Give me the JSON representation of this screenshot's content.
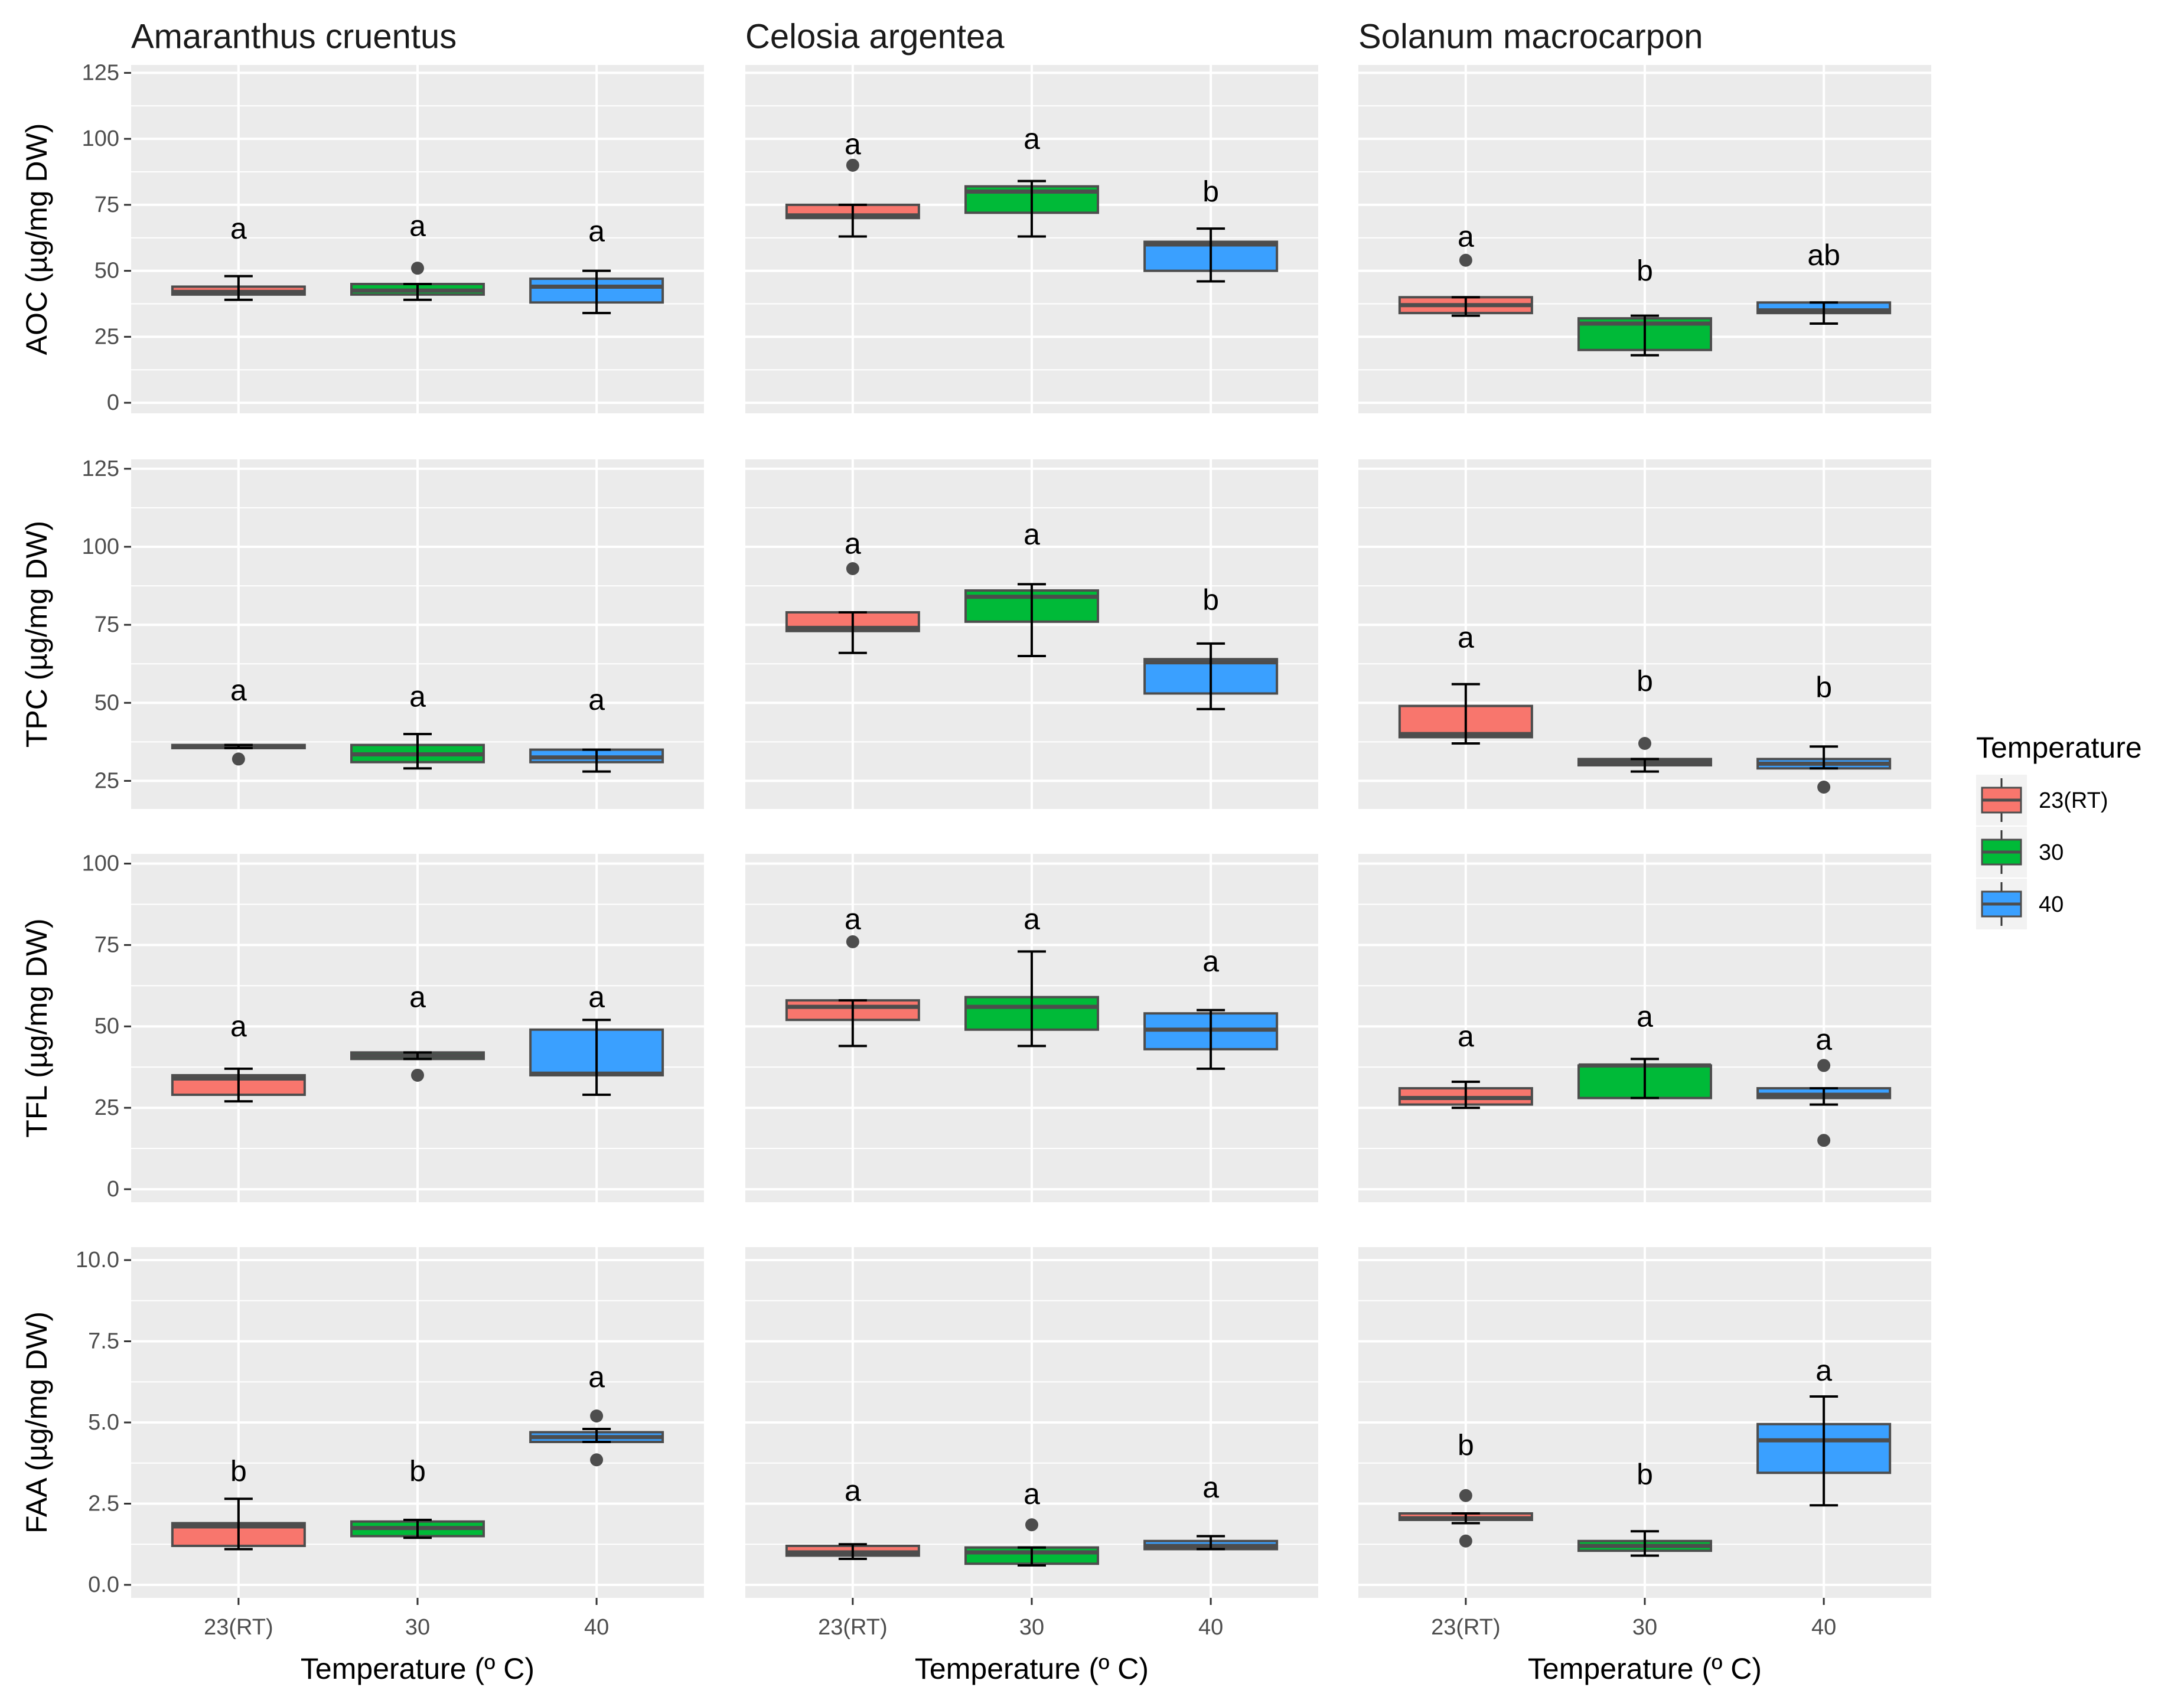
{
  "chart_data": {
    "type": "boxplot",
    "layout": "facet-grid",
    "xlabel": "Temperature (º C)",
    "legend": {
      "title": "Temperature",
      "position": "right",
      "entries": [
        {
          "label": "23(RT)",
          "color": "#F8766D"
        },
        {
          "label": "30",
          "color": "#00BA38"
        },
        {
          "label": "40",
          "color": "#3AA0FF"
        }
      ]
    },
    "categories": [
      "23(RT)",
      "30",
      "40"
    ],
    "columns": [
      "Amaranthus cruentus",
      "Celosia argentea",
      "Solanum macrocarpon"
    ],
    "rows": [
      {
        "ylabel": "AOC (µg/mg DW)",
        "ylim": [
          -4,
          128
        ],
        "ticks": [
          0,
          25,
          50,
          75,
          100,
          125
        ],
        "tick_labels": [
          "0",
          "25",
          "50",
          "75",
          "100",
          "125"
        ]
      },
      {
        "ylabel": "TPC (µg/mg DW)",
        "ylim": [
          16,
          128
        ],
        "ticks": [
          25,
          50,
          75,
          100,
          125
        ],
        "tick_labels": [
          "25",
          "50",
          "75",
          "100",
          "125"
        ]
      },
      {
        "ylabel": "TFL (µg/mg DW)",
        "ylim": [
          -4,
          103
        ],
        "ticks": [
          0,
          25,
          50,
          75,
          100
        ],
        "tick_labels": [
          "0",
          "25",
          "50",
          "75",
          "100"
        ]
      },
      {
        "ylabel": "FAA (µg/mg DW)",
        "ylim": [
          -0.4,
          10.4
        ],
        "ticks": [
          0,
          2.5,
          5,
          7.5,
          10
        ],
        "tick_labels": [
          "0.0",
          "2.5",
          "5.0",
          "7.5",
          "10.0"
        ]
      }
    ],
    "panels": [
      [
        {
          "boxes": [
            {
              "q1": 41,
              "median": 42,
              "q3": 44,
              "wlo": 39,
              "whi": 48,
              "outliers": [],
              "letter": "a",
              "letter_y": 66
            },
            {
              "q1": 41,
              "median": 42.5,
              "q3": 45,
              "wlo": 39,
              "whi": 45,
              "outliers": [
                51
              ],
              "letter": "a",
              "letter_y": 67
            },
            {
              "q1": 38,
              "median": 44,
              "q3": 47,
              "wlo": 34,
              "whi": 50,
              "outliers": [],
              "letter": "a",
              "letter_y": 65
            }
          ]
        },
        {
          "boxes": [
            {
              "q1": 70,
              "median": 71,
              "q3": 75,
              "wlo": 63,
              "whi": 75,
              "outliers": [
                90
              ],
              "letter": "a",
              "letter_y": 98
            },
            {
              "q1": 72,
              "median": 80,
              "q3": 82,
              "wlo": 63,
              "whi": 84,
              "outliers": [],
              "letter": "a",
              "letter_y": 100
            },
            {
              "q1": 50,
              "median": 60,
              "q3": 61,
              "wlo": 46,
              "whi": 66,
              "outliers": [],
              "letter": "b",
              "letter_y": 80
            }
          ]
        },
        {
          "boxes": [
            {
              "q1": 34,
              "median": 37,
              "q3": 40,
              "wlo": 33,
              "whi": 40,
              "outliers": [
                54
              ],
              "letter": "a",
              "letter_y": 63
            },
            {
              "q1": 20,
              "median": 30,
              "q3": 32,
              "wlo": 18,
              "whi": 33,
              "outliers": [],
              "letter": "b",
              "letter_y": 50
            },
            {
              "q1": 34,
              "median": 35,
              "q3": 38,
              "wlo": 30,
              "whi": 38,
              "outliers": [],
              "letter": "ab",
              "letter_y": 56
            }
          ]
        }
      ],
      [
        {
          "boxes": [
            {
              "q1": 35.5,
              "median": 36,
              "q3": 36.5,
              "wlo": 35.5,
              "whi": 36.5,
              "outliers": [
                32
              ],
              "letter": "a",
              "letter_y": 54
            },
            {
              "q1": 31,
              "median": 33.5,
              "q3": 36.5,
              "wlo": 29,
              "whi": 40,
              "outliers": [],
              "letter": "a",
              "letter_y": 52
            },
            {
              "q1": 31,
              "median": 32.5,
              "q3": 35,
              "wlo": 28,
              "whi": 35,
              "outliers": [],
              "letter": "a",
              "letter_y": 51
            }
          ]
        },
        {
          "boxes": [
            {
              "q1": 73,
              "median": 74,
              "q3": 79,
              "wlo": 66,
              "whi": 79,
              "outliers": [
                93
              ],
              "letter": "a",
              "letter_y": 101
            },
            {
              "q1": 76,
              "median": 84,
              "q3": 86,
              "wlo": 65,
              "whi": 88,
              "outliers": [],
              "letter": "a",
              "letter_y": 104
            },
            {
              "q1": 53,
              "median": 63,
              "q3": 64,
              "wlo": 48,
              "whi": 69,
              "outliers": [],
              "letter": "b",
              "letter_y": 83
            }
          ]
        },
        {
          "boxes": [
            {
              "q1": 39,
              "median": 40,
              "q3": 49,
              "wlo": 37,
              "whi": 56,
              "outliers": [],
              "letter": "a",
              "letter_y": 71
            },
            {
              "q1": 30,
              "median": 31,
              "q3": 32,
              "wlo": 28,
              "whi": 32,
              "outliers": [
                37
              ],
              "letter": "b",
              "letter_y": 57
            },
            {
              "q1": 29,
              "median": 30.5,
              "q3": 32,
              "wlo": 29,
              "whi": 36,
              "outliers": [
                23
              ],
              "letter": "b",
              "letter_y": 55
            }
          ]
        }
      ],
      [
        {
          "boxes": [
            {
              "q1": 29,
              "median": 34,
              "q3": 35,
              "wlo": 27,
              "whi": 37,
              "outliers": [],
              "letter": "a",
              "letter_y": 50
            },
            {
              "q1": 40,
              "median": 41,
              "q3": 42,
              "wlo": 40,
              "whi": 42,
              "outliers": [
                35
              ],
              "letter": "a",
              "letter_y": 59
            },
            {
              "q1": 35,
              "median": 35.5,
              "q3": 49,
              "wlo": 29,
              "whi": 52,
              "outliers": [],
              "letter": "a",
              "letter_y": 59
            }
          ]
        },
        {
          "boxes": [
            {
              "q1": 52,
              "median": 56,
              "q3": 58,
              "wlo": 44,
              "whi": 58,
              "outliers": [
                76
              ],
              "letter": "a",
              "letter_y": 83
            },
            {
              "q1": 49,
              "median": 56,
              "q3": 59,
              "wlo": 44,
              "whi": 73,
              "outliers": [],
              "letter": "a",
              "letter_y": 83
            },
            {
              "q1": 43,
              "median": 49,
              "q3": 54,
              "wlo": 37,
              "whi": 55,
              "outliers": [],
              "letter": "a",
              "letter_y": 70
            }
          ]
        },
        {
          "boxes": [
            {
              "q1": 26,
              "median": 28,
              "q3": 31,
              "wlo": 25,
              "whi": 33,
              "outliers": [],
              "letter": "a",
              "letter_y": 47
            },
            {
              "q1": 28,
              "median": 38,
              "q3": 38,
              "wlo": 28,
              "whi": 40,
              "outliers": [],
              "letter": "a",
              "letter_y": 53
            },
            {
              "q1": 28,
              "median": 29,
              "q3": 31,
              "wlo": 26,
              "whi": 31,
              "outliers": [
                38,
                15
              ],
              "letter": "a",
              "letter_y": 46
            }
          ]
        }
      ],
      [
        {
          "boxes": [
            {
              "q1": 1.2,
              "median": 1.8,
              "q3": 1.9,
              "wlo": 1.1,
              "whi": 2.65,
              "outliers": [],
              "letter": "b",
              "letter_y": 3.5
            },
            {
              "q1": 1.5,
              "median": 1.75,
              "q3": 1.95,
              "wlo": 1.45,
              "whi": 2.0,
              "outliers": [],
              "letter": "b",
              "letter_y": 3.5
            },
            {
              "q1": 4.4,
              "median": 4.55,
              "q3": 4.7,
              "wlo": 4.4,
              "whi": 4.8,
              "outliers": [
                5.2,
                3.85
              ],
              "letter": "a",
              "letter_y": 6.4
            }
          ]
        },
        {
          "boxes": [
            {
              "q1": 0.9,
              "median": 1.0,
              "q3": 1.2,
              "wlo": 0.8,
              "whi": 1.25,
              "outliers": [],
              "letter": "a",
              "letter_y": 2.9
            },
            {
              "q1": 0.65,
              "median": 1.0,
              "q3": 1.15,
              "wlo": 0.6,
              "whi": 1.15,
              "outliers": [
                1.85
              ],
              "letter": "a",
              "letter_y": 2.8
            },
            {
              "q1": 1.1,
              "median": 1.2,
              "q3": 1.35,
              "wlo": 1.1,
              "whi": 1.5,
              "outliers": [],
              "letter": "a",
              "letter_y": 3.0
            }
          ]
        },
        {
          "boxes": [
            {
              "q1": 2.0,
              "median": 2.05,
              "q3": 2.2,
              "wlo": 1.9,
              "whi": 2.2,
              "outliers": [
                2.75,
                1.35
              ],
              "letter": "b",
              "letter_y": 4.3
            },
            {
              "q1": 1.05,
              "median": 1.2,
              "q3": 1.35,
              "wlo": 0.9,
              "whi": 1.65,
              "outliers": [],
              "letter": "b",
              "letter_y": 3.4
            },
            {
              "q1": 3.45,
              "median": 4.45,
              "q3": 4.95,
              "wlo": 2.45,
              "whi": 5.8,
              "outliers": [],
              "letter": "a",
              "letter_y": 6.6
            }
          ]
        }
      ]
    ]
  }
}
